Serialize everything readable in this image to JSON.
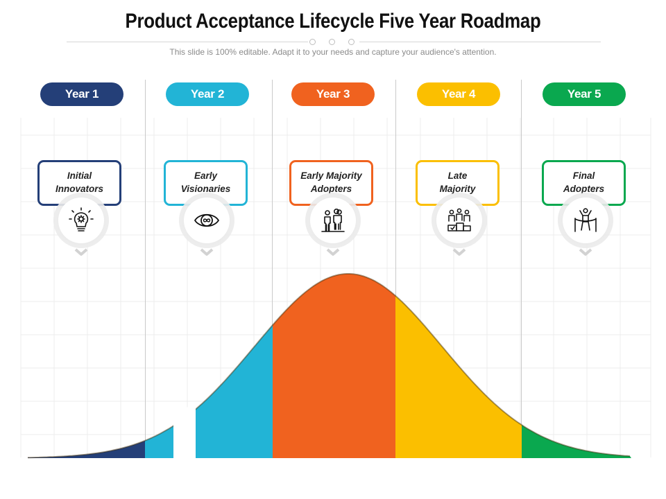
{
  "header": {
    "title": "Product Acceptance Lifecycle Five Year Roadmap",
    "subtitle": "This slide is 100% editable. Adapt it to your needs and capture your audience's attention."
  },
  "stages": [
    {
      "year": "Year 1",
      "label": "Initial\nInnovators",
      "icon": "lightbulb-gear-icon",
      "color": "#243f78"
    },
    {
      "year": "Year 2",
      "label": "Early\nVisionaries",
      "icon": "eye-icon",
      "color": "#22b4d6"
    },
    {
      "year": "Year 3",
      "label": "Early Majority\nAdopters",
      "icon": "people-group-icon",
      "color": "#f0621f"
    },
    {
      "year": "Year 4",
      "label": "Late\nMajority",
      "icon": "team-podium-icon",
      "color": "#fbbf00"
    },
    {
      "year": "Year 5",
      "label": "Final\nAdopters",
      "icon": "finish-line-icon",
      "color": "#0aa84f"
    }
  ]
}
